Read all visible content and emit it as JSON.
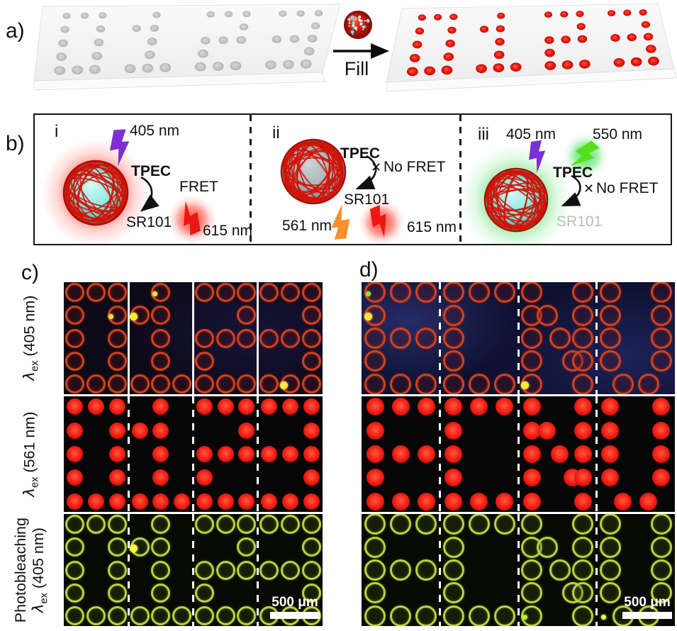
{
  "panel_a": {
    "label": "a)",
    "fill_label": "Fill",
    "pattern": [
      "0",
      "1",
      "2",
      "3"
    ]
  },
  "panel_b": {
    "label": "b)",
    "sections": [
      {
        "id": "i",
        "excitation": "405 nm",
        "particle": "TPEC",
        "process": "FRET",
        "dye": "SR101",
        "emission": "615 nm"
      },
      {
        "id": "ii",
        "particle": "TPEC",
        "x_mark": "✕",
        "process": "No FRET",
        "dye": "SR101",
        "excitation": "561 nm",
        "emission": "615 nm"
      },
      {
        "id": "iii",
        "excitation": "405 nm",
        "excitation2": "550 nm",
        "particle": "TPEC",
        "x_mark": "✕",
        "process": "No FRET",
        "dye": "SR101"
      }
    ]
  },
  "row_labels": [
    {
      "prefix": "",
      "lambda": "λ",
      "sub": "ex",
      "suffix": " (405 nm)"
    },
    {
      "prefix": "",
      "lambda": "λ",
      "sub": "ex",
      "suffix": " (561 nm)"
    },
    {
      "prefix": "Photobleaching",
      "lambda": "λ",
      "sub": "ex",
      "suffix": " (405 nm)"
    }
  ],
  "row_types": [
    "ring-red",
    "dot-red",
    "ring-green"
  ],
  "panel_c": {
    "label": "c)",
    "letters": [
      "0",
      "1",
      "2",
      "3"
    ],
    "scale_bar": "500 μm",
    "row_separators": [
      "solid",
      "dashed",
      "dashed"
    ]
  },
  "panel_d": {
    "label": "d)",
    "letters": [
      "E",
      "C",
      "N",
      "U"
    ],
    "scale_bar": "500 μm",
    "row_separators": [
      "dashed",
      "dashed",
      "dashed"
    ]
  },
  "glyphs": {
    "0": [
      [
        0,
        0
      ],
      [
        0,
        1
      ],
      [
        0,
        2
      ],
      [
        1,
        0
      ],
      [
        1,
        2
      ],
      [
        2,
        0
      ],
      [
        2,
        2
      ],
      [
        3,
        0
      ],
      [
        3,
        2
      ],
      [
        4,
        0
      ],
      [
        4,
        1
      ],
      [
        4,
        2
      ]
    ],
    "1": [
      [
        0,
        1
      ],
      [
        1,
        0
      ],
      [
        1,
        1
      ],
      [
        2,
        1
      ],
      [
        3,
        1
      ],
      [
        4,
        0
      ],
      [
        4,
        1
      ],
      [
        4,
        2
      ]
    ],
    "2": [
      [
        0,
        0
      ],
      [
        0,
        1
      ],
      [
        0,
        2
      ],
      [
        1,
        2
      ],
      [
        2,
        0
      ],
      [
        2,
        1
      ],
      [
        2,
        2
      ],
      [
        3,
        0
      ],
      [
        4,
        0
      ],
      [
        4,
        1
      ],
      [
        4,
        2
      ]
    ],
    "3": [
      [
        0,
        0
      ],
      [
        0,
        1
      ],
      [
        0,
        2
      ],
      [
        1,
        2
      ],
      [
        2,
        0
      ],
      [
        2,
        1
      ],
      [
        2,
        2
      ],
      [
        3,
        2
      ],
      [
        4,
        0
      ],
      [
        4,
        1
      ],
      [
        4,
        2
      ]
    ],
    "E": [
      [
        0,
        0
      ],
      [
        0,
        1
      ],
      [
        0,
        2
      ],
      [
        1,
        0
      ],
      [
        2,
        0
      ],
      [
        2,
        1
      ],
      [
        2,
        2
      ],
      [
        3,
        0
      ],
      [
        4,
        0
      ],
      [
        4,
        1
      ],
      [
        4,
        2
      ]
    ],
    "C": [
      [
        0,
        0
      ],
      [
        0,
        1
      ],
      [
        0,
        2
      ],
      [
        1,
        0
      ],
      [
        2,
        0
      ],
      [
        3,
        0
      ],
      [
        4,
        0
      ],
      [
        4,
        1
      ],
      [
        4,
        2
      ]
    ],
    "N": [
      [
        0,
        0
      ],
      [
        0,
        2
      ],
      [
        1,
        0
      ],
      [
        1,
        0.6
      ],
      [
        1,
        2
      ],
      [
        2,
        0
      ],
      [
        2,
        1.1
      ],
      [
        2,
        2
      ],
      [
        3,
        0
      ],
      [
        3,
        1.6
      ],
      [
        3,
        2
      ],
      [
        4,
        0
      ],
      [
        4,
        2
      ]
    ],
    "U": [
      [
        0,
        0
      ],
      [
        0,
        2
      ],
      [
        1,
        0
      ],
      [
        1,
        2
      ],
      [
        2,
        0
      ],
      [
        2,
        2
      ],
      [
        3,
        0
      ],
      [
        3,
        2
      ],
      [
        4,
        0.5
      ],
      [
        4,
        1.5
      ]
    ]
  },
  "specks": {
    "c": [
      {
        "row": 0,
        "tile": 0,
        "r": 1,
        "c": 2,
        "color": "#ffe43c",
        "big": false
      },
      {
        "row": 0,
        "tile": 1,
        "r": 1,
        "c": 0,
        "color": "#ffec2e",
        "big": true
      },
      {
        "row": 0,
        "tile": 1,
        "r": 0,
        "c": 1,
        "color": "#ffe43c",
        "big": false
      },
      {
        "row": 0,
        "tile": 3,
        "r": 4,
        "c": 1,
        "color": "#ffe43c",
        "big": true
      },
      {
        "row": 2,
        "tile": 1,
        "r": 1,
        "c": 0,
        "color": "#f6ff43",
        "big": true
      }
    ],
    "d": [
      {
        "row": 0,
        "tile": 0,
        "r": 0,
        "c": 0,
        "color": "#8ee62e",
        "big": false
      },
      {
        "row": 0,
        "tile": 0,
        "r": 1,
        "c": 0,
        "color": "#ffe43c",
        "big": true
      },
      {
        "row": 0,
        "tile": 2,
        "r": 4,
        "c": 0,
        "color": "#ffec2e",
        "big": true
      },
      {
        "row": 2,
        "tile": 2,
        "r": 4,
        "c": 0,
        "color": "#b4f03c",
        "big": false
      },
      {
        "row": 2,
        "tile": 3,
        "r": 4,
        "c": 0,
        "color": "#eaff50",
        "big": false
      }
    ]
  },
  "colors": {
    "red_dot": "#f21c12",
    "ring_red": "#d2401c",
    "ring_green": "#bad23d",
    "bolt_405": "#7b2fd6",
    "bolt_561": "#f5912e",
    "bolt_615": "#ee1612",
    "bolt_550": "#55e01a",
    "glow_red": "#ff2a1a",
    "glow_green": "#3fdc55",
    "mesh_red": "#d21308",
    "sphere_core_cyan": "#8fe9e0",
    "sphere_core_gray": "#a8b7b9",
    "row_bg_dark": "#060606",
    "row_bg_green": "#070903",
    "row_bg_c_405": "#0c0a16",
    "row_bg_d_405": "#0e1030",
    "plate_fill": "#f5f5f5",
    "empty_dot": "#c6c6c6"
  }
}
